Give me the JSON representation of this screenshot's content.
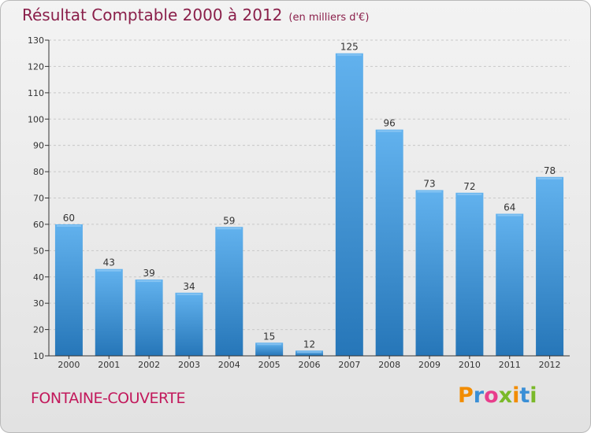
{
  "chart_data": {
    "type": "bar",
    "title": "Résultat Comptable 2000 à 2012",
    "unit_note": "(en milliers d'€)",
    "categories": [
      "2000",
      "2001",
      "2002",
      "2003",
      "2004",
      "2005",
      "2006",
      "2007",
      "2008",
      "2009",
      "2010",
      "2011",
      "2012"
    ],
    "values": [
      60,
      43,
      39,
      34,
      59,
      15,
      12,
      125,
      96,
      73,
      72,
      64,
      78
    ],
    "ylim": [
      10,
      130
    ],
    "yticks": [
      10,
      20,
      30,
      40,
      50,
      60,
      70,
      80,
      90,
      100,
      110,
      120,
      130
    ],
    "grid": true,
    "xlabel": "",
    "ylabel": ""
  },
  "commune": "FONTAINE-COUVERTE",
  "logo": {
    "text": "Proxiti",
    "letters": [
      "P",
      "r",
      "o",
      "x",
      "i",
      "t",
      "i"
    ],
    "colors": [
      "#f28c00",
      "#3a8fd6",
      "#e83e8c",
      "#7ab929",
      "#f28c00",
      "#3a8fd6",
      "#7ab929"
    ]
  },
  "colors": {
    "bar_light": "#62b2ee",
    "bar_dark": "#2676b8",
    "title": "#8a1f4a",
    "commune": "#c2185b"
  }
}
